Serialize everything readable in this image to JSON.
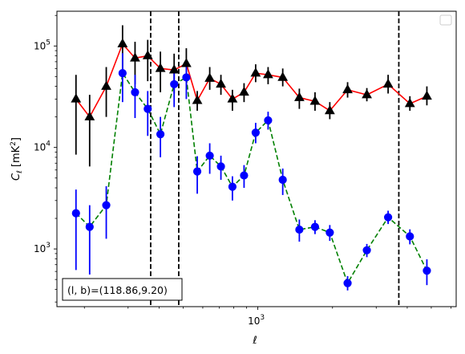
{
  "chart_data": {
    "type": "line",
    "xlabel": "ℓ",
    "ylabel": "C",
    "ylabel_sub": "ℓ",
    "ylabel_unit": "[mK",
    "ylabel_unit_sup": "2",
    "ylabel_unit_end": "]",
    "xscale": "log",
    "yscale": "log",
    "xlim": [
      155,
      6300
    ],
    "ylim": [
      270,
      220000
    ],
    "x_ticks": [
      {
        "value": 1000,
        "base": "10",
        "exp": "3"
      }
    ],
    "y_ticks": [
      {
        "value": 1000,
        "base": "10",
        "exp": "3"
      },
      {
        "value": 10000,
        "base": "10",
        "exp": "4"
      },
      {
        "value": 100000,
        "base": "10",
        "exp": "5"
      }
    ],
    "vlines": [
      370,
      480,
      3700
    ],
    "annotation": "(l, b)=(118.86,9.20)",
    "legend": {
      "placement": "top-right",
      "entries": []
    },
    "series": [
      {
        "color": "#000000",
        "line_color": "#ff0000",
        "line_style": "solid",
        "marker": "triangle",
        "points": [
          {
            "x": 185,
            "y": 30000,
            "lo": 8500,
            "hi": 52000
          },
          {
            "x": 210,
            "y": 20000,
            "lo": 6500,
            "hi": 33000
          },
          {
            "x": 245,
            "y": 40000,
            "lo": 20000,
            "hi": 62000
          },
          {
            "x": 285,
            "y": 105000,
            "lo": 55000,
            "hi": 160000
          },
          {
            "x": 320,
            "y": 76000,
            "lo": 42000,
            "hi": 110000
          },
          {
            "x": 360,
            "y": 80000,
            "lo": 45000,
            "hi": 115000
          },
          {
            "x": 405,
            "y": 60000,
            "lo": 35000,
            "hi": 88000
          },
          {
            "x": 460,
            "y": 58000,
            "lo": 34000,
            "hi": 84000
          },
          {
            "x": 515,
            "y": 67000,
            "lo": 40000,
            "hi": 95000
          },
          {
            "x": 570,
            "y": 29000,
            "lo": 23000,
            "hi": 36000
          },
          {
            "x": 640,
            "y": 48000,
            "lo": 37000,
            "hi": 62000
          },
          {
            "x": 710,
            "y": 42000,
            "lo": 33000,
            "hi": 52000
          },
          {
            "x": 790,
            "y": 30000,
            "lo": 23000,
            "hi": 37000
          },
          {
            "x": 880,
            "y": 35000,
            "lo": 28000,
            "hi": 43000
          },
          {
            "x": 980,
            "y": 54000,
            "lo": 44000,
            "hi": 66000
          },
          {
            "x": 1100,
            "y": 52000,
            "lo": 42000,
            "hi": 62000
          },
          {
            "x": 1260,
            "y": 49000,
            "lo": 40000,
            "hi": 60000
          },
          {
            "x": 1470,
            "y": 31000,
            "lo": 24000,
            "hi": 38000
          },
          {
            "x": 1700,
            "y": 28500,
            "lo": 23000,
            "hi": 35000
          },
          {
            "x": 1950,
            "y": 23000,
            "lo": 19000,
            "hi": 28000
          },
          {
            "x": 2300,
            "y": 37000,
            "lo": 31000,
            "hi": 44000
          },
          {
            "x": 2750,
            "y": 33000,
            "lo": 28500,
            "hi": 38500
          },
          {
            "x": 3350,
            "y": 42000,
            "lo": 34000,
            "hi": 52000
          },
          {
            "x": 4100,
            "y": 27000,
            "lo": 23000,
            "hi": 32000
          },
          {
            "x": 4800,
            "y": 32000,
            "lo": 26000,
            "hi": 40000
          }
        ]
      },
      {
        "color": "#0000ff",
        "line_color": "#008000",
        "line_style": "dashed",
        "marker": "circle",
        "points": [
          {
            "x": 185,
            "y": 2250,
            "lo": 620,
            "hi": 3850
          },
          {
            "x": 210,
            "y": 1650,
            "lo": 560,
            "hi": 2700
          },
          {
            "x": 245,
            "y": 2700,
            "lo": 1260,
            "hi": 4150
          },
          {
            "x": 285,
            "y": 54000,
            "lo": 28000,
            "hi": 85000
          },
          {
            "x": 320,
            "y": 35000,
            "lo": 19500,
            "hi": 52000
          },
          {
            "x": 360,
            "y": 24000,
            "lo": 13000,
            "hi": 36000
          },
          {
            "x": 405,
            "y": 13500,
            "lo": 8000,
            "hi": 20000
          },
          {
            "x": 460,
            "y": 42000,
            "lo": 25000,
            "hi": 62000
          },
          {
            "x": 515,
            "y": 49000,
            "lo": 30000,
            "hi": 70000
          },
          {
            "x": 570,
            "y": 5800,
            "lo": 3500,
            "hi": 8200
          },
          {
            "x": 640,
            "y": 8300,
            "lo": 5500,
            "hi": 11000
          },
          {
            "x": 710,
            "y": 6500,
            "lo": 4800,
            "hi": 8300
          },
          {
            "x": 790,
            "y": 4100,
            "lo": 3000,
            "hi": 5200
          },
          {
            "x": 880,
            "y": 5300,
            "lo": 4000,
            "hi": 6700
          },
          {
            "x": 980,
            "y": 14000,
            "lo": 11000,
            "hi": 17500
          },
          {
            "x": 1100,
            "y": 18500,
            "lo": 15000,
            "hi": 22500
          },
          {
            "x": 1260,
            "y": 4800,
            "lo": 3400,
            "hi": 6200
          },
          {
            "x": 1470,
            "y": 1550,
            "lo": 1180,
            "hi": 1950
          },
          {
            "x": 1700,
            "y": 1650,
            "lo": 1400,
            "hi": 1920
          },
          {
            "x": 1950,
            "y": 1450,
            "lo": 1200,
            "hi": 1720
          },
          {
            "x": 2300,
            "y": 460,
            "lo": 390,
            "hi": 540
          },
          {
            "x": 2750,
            "y": 970,
            "lo": 830,
            "hi": 1120
          },
          {
            "x": 3350,
            "y": 2050,
            "lo": 1760,
            "hi": 2380
          },
          {
            "x": 4100,
            "y": 1330,
            "lo": 1110,
            "hi": 1560
          },
          {
            "x": 4800,
            "y": 610,
            "lo": 440,
            "hi": 790
          }
        ]
      }
    ]
  }
}
